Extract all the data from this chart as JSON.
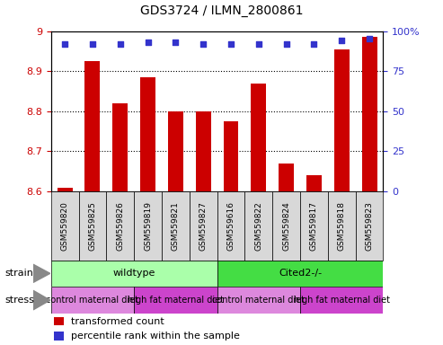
{
  "title": "GDS3724 / ILMN_2800861",
  "samples": [
    "GSM559820",
    "GSM559825",
    "GSM559826",
    "GSM559819",
    "GSM559821",
    "GSM559827",
    "GSM559616",
    "GSM559822",
    "GSM559824",
    "GSM559817",
    "GSM559818",
    "GSM559823"
  ],
  "bar_values": [
    8.61,
    8.925,
    8.82,
    8.885,
    8.8,
    8.8,
    8.775,
    8.87,
    8.67,
    8.64,
    8.955,
    8.985
  ],
  "percentile_values": [
    92,
    92,
    92,
    93,
    93,
    92,
    92,
    92,
    92,
    92,
    94,
    95
  ],
  "ymin": 8.6,
  "ymax": 9.0,
  "yticks": [
    8.6,
    8.7,
    8.8,
    8.9,
    9.0
  ],
  "ytick_labels": [
    "8.6",
    "8.7",
    "8.8",
    "8.9",
    "9"
  ],
  "y2min": 0,
  "y2max": 100,
  "y2ticks": [
    0,
    25,
    50,
    75,
    100
  ],
  "y2tick_labels": [
    "0",
    "25",
    "50",
    "75",
    "100%"
  ],
  "bar_color": "#cc0000",
  "dot_color": "#3333cc",
  "bar_bottom": 8.6,
  "strain_labels": [
    {
      "label": "wildtype",
      "start": 0,
      "end": 6,
      "color": "#aaffaa"
    },
    {
      "label": "Cited2-/-",
      "start": 6,
      "end": 12,
      "color": "#44dd44"
    }
  ],
  "stress_labels": [
    {
      "label": "control maternal diet",
      "start": 0,
      "end": 3,
      "color": "#dd88dd"
    },
    {
      "label": "high fat maternal diet",
      "start": 3,
      "end": 6,
      "color": "#cc44cc"
    },
    {
      "label": "control maternal diet",
      "start": 6,
      "end": 9,
      "color": "#dd88dd"
    },
    {
      "label": "high fat maternal diet",
      "start": 9,
      "end": 12,
      "color": "#cc44cc"
    }
  ],
  "legend_items": [
    {
      "label": "transformed count",
      "color": "#cc0000"
    },
    {
      "label": "percentile rank within the sample",
      "color": "#3333cc"
    }
  ],
  "left_axis_color": "#cc0000",
  "right_axis_color": "#3333cc",
  "bg_color": "#d8d8d8",
  "plot_bg": "#ffffff",
  "grid_color": "#000000"
}
